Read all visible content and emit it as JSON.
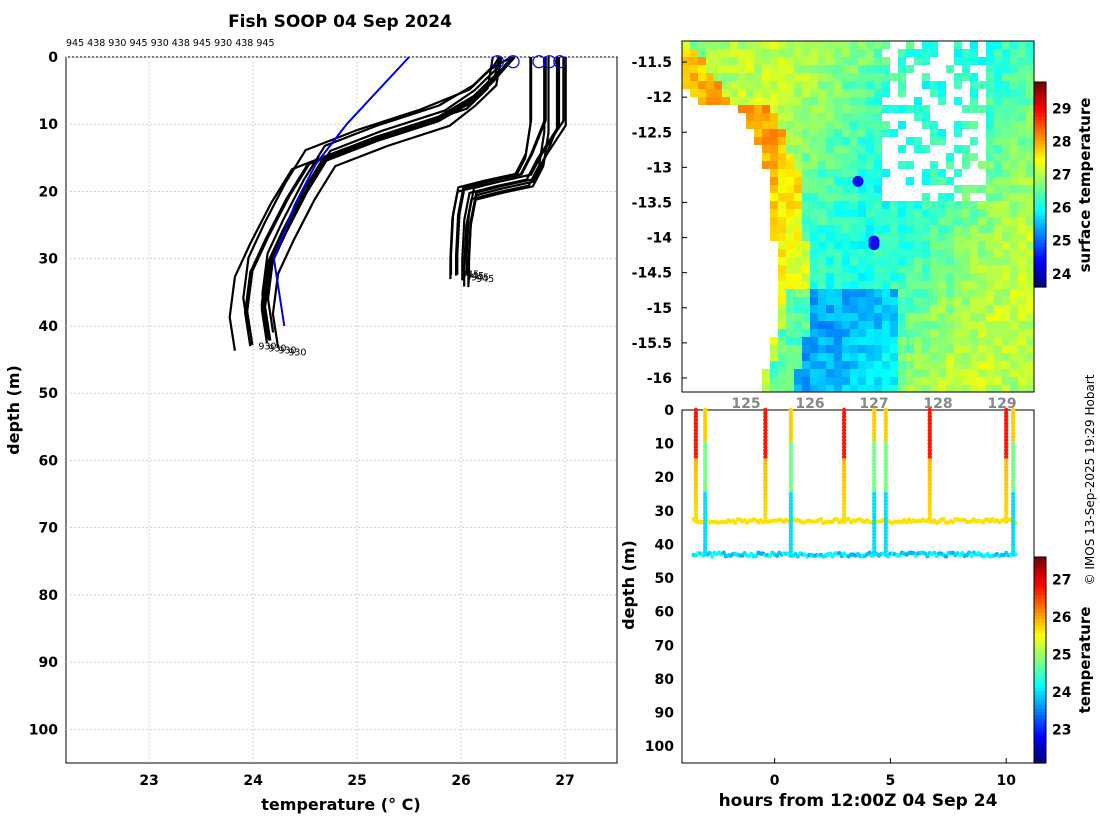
{
  "title": "Fish SOOP 04 Sep 2024",
  "credit": "© IMOS 13-Sep-2025 19:29 Hobart",
  "header_label_text": "945 438 930 945 930 438 945 930 438 945",
  "profile_chart": {
    "type": "line",
    "xlabel": "temperature (° C)",
    "ylabel": "depth (m)",
    "xlim": [
      22.2,
      27.5
    ],
    "ylim": [
      0,
      105
    ],
    "xticks": [
      23,
      24,
      25,
      26,
      27
    ],
    "yticks": [
      0,
      10,
      20,
      30,
      40,
      50,
      60,
      70,
      80,
      90,
      100
    ],
    "grid": true,
    "reference_profile": {
      "color": "#0000ee",
      "points": [
        [
          25.5,
          0
        ],
        [
          25.2,
          5
        ],
        [
          24.9,
          10
        ],
        [
          24.6,
          16
        ],
        [
          24.4,
          22
        ],
        [
          24.2,
          30
        ],
        [
          24.3,
          40
        ]
      ]
    },
    "profiles_group_a": {
      "color": "#000000",
      "bottom_labels": [
        "930",
        "930",
        "930",
        "930"
      ],
      "base": [
        [
          26.35,
          0
        ],
        [
          26.3,
          3
        ],
        [
          26.1,
          6
        ],
        [
          25.7,
          9
        ],
        [
          25.1,
          12
        ],
        [
          24.6,
          15
        ],
        [
          24.4,
          20
        ],
        [
          24.2,
          26
        ],
        [
          24.05,
          31
        ],
        [
          24.0,
          37
        ],
        [
          24.05,
          42
        ]
      ]
    },
    "profiles_group_b": {
      "color": "#000000",
      "bottom_labels": [
        "945",
        "945",
        "945",
        "945"
      ],
      "base": [
        [
          26.75,
          0
        ],
        [
          26.75,
          10
        ],
        [
          26.7,
          15
        ],
        [
          26.6,
          18
        ],
        [
          26.3,
          19
        ],
        [
          26.05,
          20
        ],
        [
          26.0,
          24
        ],
        [
          25.98,
          30
        ],
        [
          25.98,
          33
        ]
      ]
    },
    "start_circles_x": [
      26.35,
      26.5,
      26.75,
      26.85,
      26.95
    ]
  },
  "map_chart": {
    "type": "heatmap",
    "yticks": [
      "-11.5",
      "-12",
      "-12.5",
      "-13",
      "-13.5",
      "-14",
      "-14.5",
      "-15",
      "-15.5",
      "-16"
    ],
    "yvals": [
      -11.5,
      -12,
      -12.5,
      -13,
      -13.5,
      -14,
      -14.5,
      -15,
      -15.5,
      -16
    ],
    "ylim": [
      -11.2,
      -16.2
    ],
    "xticks_partial": [
      "125",
      "126",
      "127",
      "128",
      "129"
    ],
    "xvals": [
      125,
      126,
      127,
      128,
      129
    ],
    "xlim": [
      124.0,
      129.5
    ],
    "colorbar": {
      "label": "surface temperature",
      "ticks": [
        "24",
        "25",
        "26",
        "27",
        "28",
        "29"
      ],
      "tickvals": [
        24,
        25,
        26,
        27,
        28,
        29
      ],
      "range": [
        23.6,
        29.8
      ]
    },
    "stations": [
      {
        "lon": 126.75,
        "lat": -13.2
      },
      {
        "lon": 127.0,
        "lat": -14.05
      },
      {
        "lon": 127.0,
        "lat": -14.1
      }
    ]
  },
  "time_chart": {
    "type": "scatter",
    "xlabel": "hours from 12:00Z 04 Sep 24",
    "ylabel": "depth (m)",
    "xlim": [
      -4,
      11.2
    ],
    "ylim": [
      0,
      105
    ],
    "xticks": [
      0,
      5,
      10
    ],
    "yticks": [
      0,
      10,
      20,
      30,
      40,
      50,
      60,
      70,
      80,
      90,
      100
    ],
    "colorbar": {
      "label": "temperature",
      "ticks": [
        "23",
        "24",
        "25",
        "26",
        "27"
      ],
      "tickvals": [
        23,
        24,
        25,
        26,
        27
      ],
      "range": [
        22.1,
        27.6
      ]
    },
    "shallow_casts_hours": [
      -3.4,
      -0.4,
      3.0,
      6.7,
      10.0
    ],
    "deep_casts_hours": [
      -3.0,
      0.7,
      4.3,
      4.8,
      10.3
    ],
    "shallow_track": {
      "depth": 33,
      "temp": 25.7
    },
    "deep_track": {
      "depth": 43,
      "temp": 24.0
    }
  }
}
